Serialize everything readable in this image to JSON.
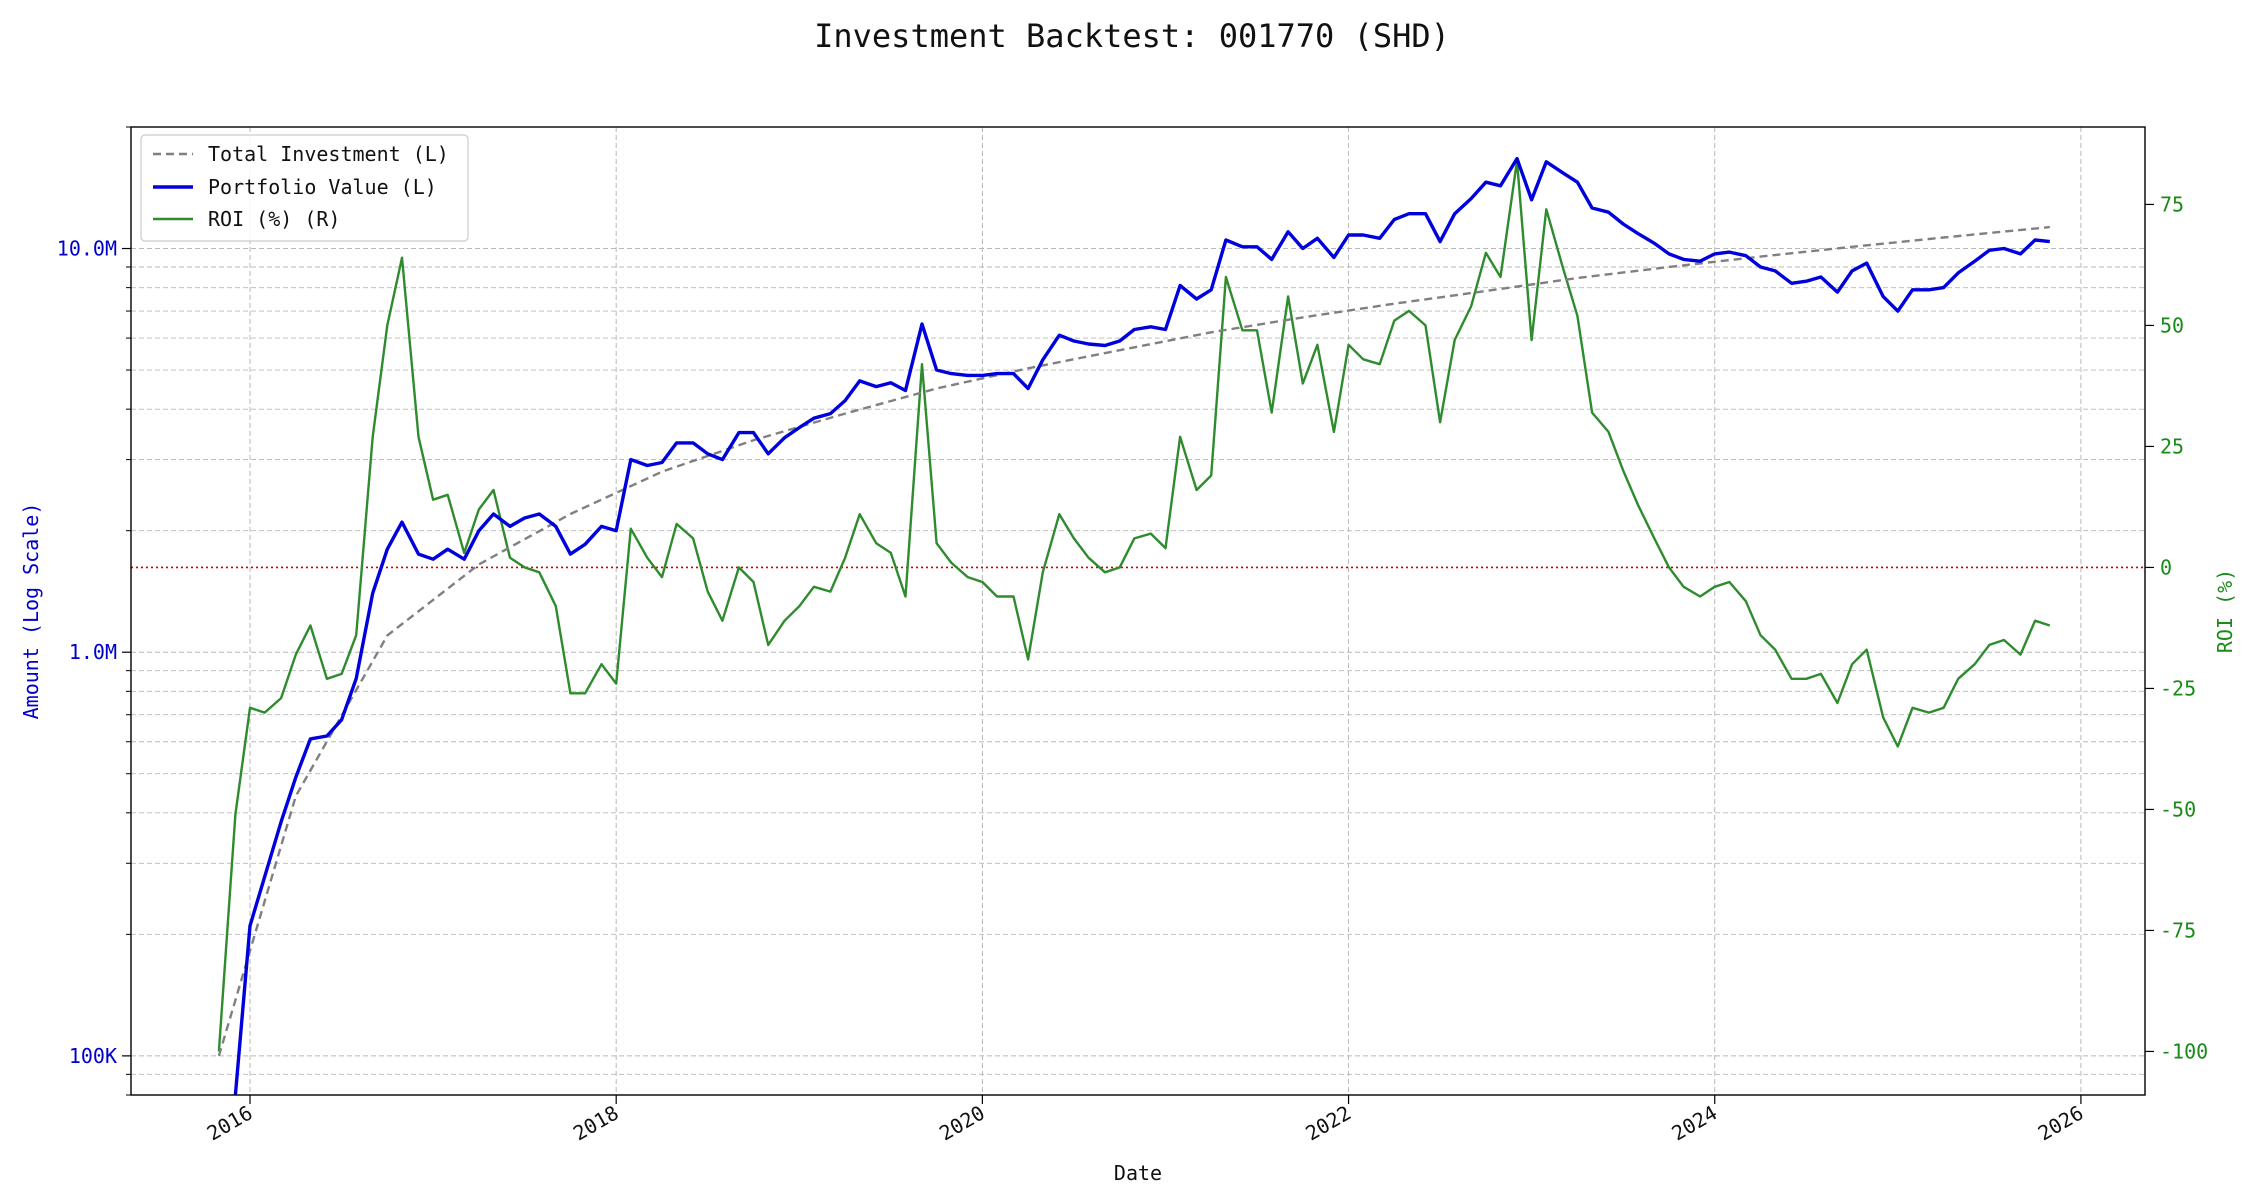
{
  "chart_data": {
    "type": "line",
    "title": "Investment Backtest: 001770 (SHD)",
    "xlabel": "Date",
    "ylabel_left": "Amount (Log Scale)",
    "ylabel_right": "ROI (%)",
    "x_ticks": [
      "2016",
      "2018",
      "2020",
      "2022",
      "2024",
      "2026"
    ],
    "y_left_ticks": [
      "100K",
      "1.0M",
      "10.0M"
    ],
    "y_right_ticks": [
      "-100",
      "-75",
      "-50",
      "-25",
      "0",
      "25",
      "50",
      "75"
    ],
    "y_left_scale": "log",
    "y_left_range": [
      80000,
      20000000
    ],
    "y_right_range": [
      -109,
      91
    ],
    "x_range": [
      2015.35,
      2026.35
    ],
    "grid": true,
    "legend_position": "top-left",
    "zero_line_color": "#cc0000",
    "series": [
      {
        "name": "Total Investment (L)",
        "axis": "left",
        "color": "#808080",
        "style": "dashed",
        "x": [
          2015.83,
          2016.25,
          2016.75,
          2017.25,
          2017.75,
          2018.25,
          2018.75,
          2019.25,
          2019.75,
          2020.25,
          2020.75,
          2021.25,
          2021.75,
          2022.25,
          2022.75,
          2023.25,
          2023.75,
          2024.25,
          2024.75,
          2025.25,
          2025.83
        ],
        "values": [
          100000,
          440000,
          1100000,
          1650000,
          2200000,
          2800000,
          3350000,
          3900000,
          4500000,
          5050000,
          5600000,
          6200000,
          6750000,
          7300000,
          7850000,
          8450000,
          9000000,
          9550000,
          10100000,
          10650000,
          11300000
        ]
      },
      {
        "name": "Portfolio Value (L)",
        "axis": "left",
        "color": "#0000dd",
        "style": "solid",
        "x": [
          2015.92,
          2016.0,
          2016.17,
          2016.25,
          2016.33,
          2016.42,
          2016.5,
          2016.58,
          2016.67,
          2016.75,
          2016.83,
          2016.92,
          2017.0,
          2017.08,
          2017.17,
          2017.25,
          2017.33,
          2017.42,
          2017.5,
          2017.58,
          2017.67,
          2017.75,
          2017.83,
          2017.92,
          2018.0,
          2018.08,
          2018.17,
          2018.25,
          2018.33,
          2018.42,
          2018.5,
          2018.58,
          2018.67,
          2018.75,
          2018.83,
          2018.92,
          2019.0,
          2019.08,
          2019.17,
          2019.25,
          2019.33,
          2019.42,
          2019.5,
          2019.58,
          2019.67,
          2019.75,
          2019.83,
          2019.92,
          2020.0,
          2020.08,
          2020.17,
          2020.25,
          2020.33,
          2020.42,
          2020.5,
          2020.58,
          2020.67,
          2020.75,
          2020.83,
          2020.92,
          2021.0,
          2021.08,
          2021.17,
          2021.25,
          2021.33,
          2021.42,
          2021.5,
          2021.58,
          2021.67,
          2021.75,
          2021.83,
          2021.92,
          2022.0,
          2022.08,
          2022.17,
          2022.25,
          2022.33,
          2022.42,
          2022.5,
          2022.58,
          2022.67,
          2022.75,
          2022.83,
          2022.92,
          2023.0,
          2023.08,
          2023.17,
          2023.25,
          2023.33,
          2023.42,
          2023.5,
          2023.58,
          2023.67,
          2023.75,
          2023.83,
          2023.92,
          2024.0,
          2024.08,
          2024.17,
          2024.25,
          2024.33,
          2024.42,
          2024.5,
          2024.58,
          2024.67,
          2024.75,
          2024.83,
          2024.92,
          2025.0,
          2025.08,
          2025.17,
          2025.25,
          2025.33,
          2025.42,
          2025.5,
          2025.58,
          2025.67,
          2025.75,
          2025.83
        ],
        "values": [
          80000,
          210000,
          380000,
          490000,
          610000,
          620000,
          680000,
          860000,
          1400000,
          1800000,
          2100000,
          1750000,
          1700000,
          1800000,
          1700000,
          2000000,
          2200000,
          2050000,
          2150000,
          2200000,
          2050000,
          1750000,
          1850000,
          2050000,
          2000000,
          3000000,
          2900000,
          2950000,
          3300000,
          3300000,
          3100000,
          3000000,
          3500000,
          3500000,
          3100000,
          3400000,
          3600000,
          3800000,
          3900000,
          4200000,
          4700000,
          4550000,
          4650000,
          4450000,
          6500000,
          5000000,
          4900000,
          4850000,
          4850000,
          4900000,
          4900000,
          4500000,
          5300000,
          6100000,
          5900000,
          5800000,
          5750000,
          5900000,
          6300000,
          6400000,
          6300000,
          8100000,
          7500000,
          7900000,
          10500000,
          10100000,
          10100000,
          9400000,
          11000000,
          10000000,
          10600000,
          9500000,
          10800000,
          10800000,
          10600000,
          11800000,
          12200000,
          12200000,
          10400000,
          12200000,
          13300000,
          14600000,
          14300000,
          16700000,
          13200000,
          16400000,
          15400000,
          14600000,
          12600000,
          12300000,
          11500000,
          10900000,
          10300000,
          9700000,
          9400000,
          9300000,
          9700000,
          9800000,
          9600000,
          9000000,
          8800000,
          8200000,
          8300000,
          8500000,
          7800000,
          8800000,
          9200000,
          7600000,
          7000000,
          7900000,
          7900000,
          8000000,
          8700000,
          9300000,
          9900000,
          10000000,
          9700000,
          10500000,
          10400000
        ]
      },
      {
        "name": "ROI (%) (R)",
        "axis": "right",
        "color": "#2e8b2e",
        "style": "solid",
        "x": [
          2015.83,
          2015.92,
          2016.0,
          2016.08,
          2016.17,
          2016.25,
          2016.33,
          2016.42,
          2016.5,
          2016.58,
          2016.67,
          2016.75,
          2016.83,
          2016.92,
          2017.0,
          2017.08,
          2017.17,
          2017.25,
          2017.33,
          2017.42,
          2017.5,
          2017.58,
          2017.67,
          2017.75,
          2017.83,
          2017.92,
          2018.0,
          2018.08,
          2018.17,
          2018.25,
          2018.33,
          2018.42,
          2018.5,
          2018.58,
          2018.67,
          2018.75,
          2018.83,
          2018.92,
          2019.0,
          2019.08,
          2019.17,
          2019.25,
          2019.33,
          2019.42,
          2019.5,
          2019.58,
          2019.67,
          2019.75,
          2019.83,
          2019.92,
          2020.0,
          2020.08,
          2020.17,
          2020.25,
          2020.33,
          2020.42,
          2020.5,
          2020.58,
          2020.67,
          2020.75,
          2020.83,
          2020.92,
          2021.0,
          2021.08,
          2021.17,
          2021.25,
          2021.33,
          2021.42,
          2021.5,
          2021.58,
          2021.67,
          2021.75,
          2021.83,
          2021.92,
          2022.0,
          2022.08,
          2022.17,
          2022.25,
          2022.33,
          2022.42,
          2022.5,
          2022.58,
          2022.67,
          2022.75,
          2022.83,
          2022.92,
          2023.0,
          2023.08,
          2023.17,
          2023.25,
          2023.33,
          2023.42,
          2023.5,
          2023.58,
          2023.67,
          2023.75,
          2023.83,
          2023.92,
          2024.0,
          2024.08,
          2024.17,
          2024.25,
          2024.33,
          2024.42,
          2024.5,
          2024.58,
          2024.67,
          2024.75,
          2024.83,
          2024.92,
          2025.0,
          2025.08,
          2025.17,
          2025.25,
          2025.33,
          2025.42,
          2025.5,
          2025.58,
          2025.67,
          2025.75,
          2025.83
        ],
        "values": [
          -100,
          -51,
          -29,
          -30,
          -27,
          -18,
          -12,
          -23,
          -22,
          -14,
          27,
          50,
          64,
          27,
          14,
          15,
          3,
          12,
          16,
          2,
          0,
          -1,
          -8,
          -26,
          -26,
          -20,
          -24,
          8,
          2,
          -2,
          9,
          6,
          -5,
          -11,
          0,
          -3,
          -16,
          -11,
          -8,
          -4,
          -5,
          2,
          11,
          5,
          3,
          -6,
          42,
          5,
          1,
          -2,
          -3,
          -6,
          -6,
          -19,
          -1,
          11,
          6,
          2,
          -1,
          0,
          6,
          7,
          4,
          27,
          16,
          19,
          60,
          49,
          49,
          32,
          56,
          38,
          46,
          28,
          46,
          43,
          42,
          51,
          53,
          50,
          30,
          47,
          54,
          65,
          60,
          84,
          47,
          74,
          62,
          52,
          32,
          28,
          20,
          13,
          6,
          0,
          -4,
          -6,
          -4,
          -3,
          -7,
          -14,
          -17,
          -23,
          -23,
          -22,
          -28,
          -20,
          -17,
          -31,
          -37,
          -29,
          -30,
          -29,
          -23,
          -20,
          -16,
          -15,
          -18,
          -11,
          -12
        ]
      }
    ]
  }
}
